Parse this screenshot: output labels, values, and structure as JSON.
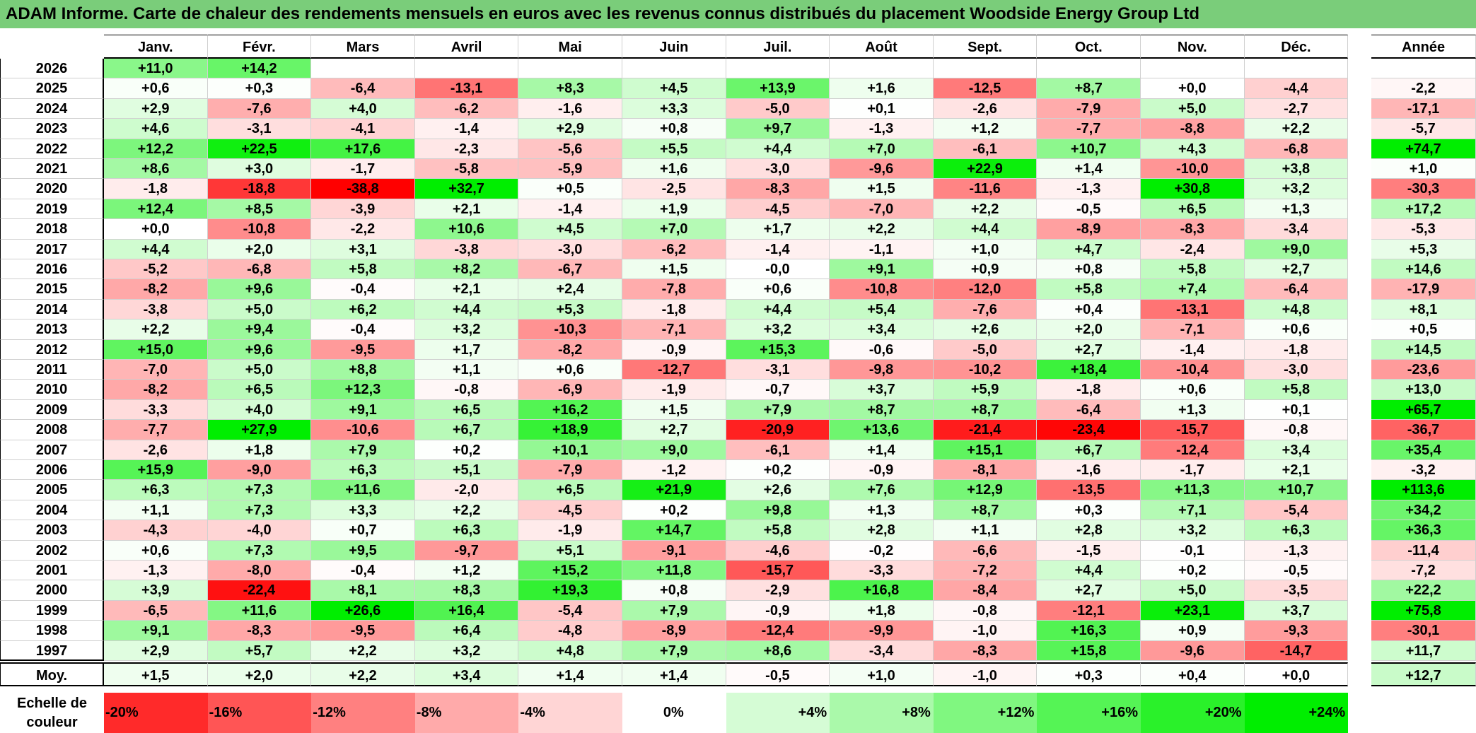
{
  "title": "ADAM Informe. Carte de chaleur des rendements mensuels en euros avec les revenus connus distribués du placement Woodside Energy Group Ltd",
  "chart_data": {
    "type": "heatmap",
    "title": "ADAM Informe. Carte de chaleur des rendements mensuels en euros avec les revenus connus distribués du placement Woodside Energy Group Ltd",
    "columns": [
      "Janv.",
      "Févr.",
      "Mars",
      "Avril",
      "Mai",
      "Juin",
      "Juil.",
      "Août",
      "Sept.",
      "Oct.",
      "Nov.",
      "Déc."
    ],
    "annual_label": "Année",
    "average_label": "Moy.",
    "rows": [
      {
        "year": "2026",
        "values": [
          "+11,0",
          "+14,2",
          "",
          "",
          "",
          "",
          "",
          "",
          "",
          "",
          "",
          ""
        ],
        "annual": ""
      },
      {
        "year": "2025",
        "values": [
          "+0,6",
          "+0,3",
          "-6,4",
          "-13,1",
          "+8,3",
          "+4,5",
          "+13,9",
          "+1,6",
          "-12,5",
          "+8,7",
          "+0,0",
          "-4,4"
        ],
        "annual": "-2,2"
      },
      {
        "year": "2024",
        "values": [
          "+2,9",
          "-7,6",
          "+4,0",
          "-6,2",
          "-1,6",
          "+3,3",
          "-5,0",
          "+0,1",
          "-2,6",
          "-7,9",
          "+5,0",
          "-2,7"
        ],
        "annual": "-17,1"
      },
      {
        "year": "2023",
        "values": [
          "+4,6",
          "-3,1",
          "-4,1",
          "-1,4",
          "+2,9",
          "+0,8",
          "+9,7",
          "-1,3",
          "+1,2",
          "-7,7",
          "-8,8",
          "+2,2"
        ],
        "annual": "-5,7"
      },
      {
        "year": "2022",
        "values": [
          "+12,2",
          "+22,5",
          "+17,6",
          "-2,3",
          "-5,6",
          "+5,5",
          "+4,4",
          "+7,0",
          "-6,1",
          "+10,7",
          "+4,3",
          "-6,8"
        ],
        "annual": "+74,7"
      },
      {
        "year": "2021",
        "values": [
          "+8,6",
          "+3,0",
          "-1,7",
          "-5,8",
          "-5,9",
          "+1,6",
          "-3,0",
          "-9,6",
          "+22,9",
          "+1,4",
          "-10,0",
          "+3,8"
        ],
        "annual": "+1,0"
      },
      {
        "year": "2020",
        "values": [
          "-1,8",
          "-18,8",
          "-38,8",
          "+32,7",
          "+0,5",
          "-2,5",
          "-8,3",
          "+1,5",
          "-11,6",
          "-1,3",
          "+30,8",
          "+3,2"
        ],
        "annual": "-30,3"
      },
      {
        "year": "2019",
        "values": [
          "+12,4",
          "+8,5",
          "-3,9",
          "+2,1",
          "-1,4",
          "+1,9",
          "-4,5",
          "-7,0",
          "+2,2",
          "-0,5",
          "+6,5",
          "+1,3"
        ],
        "annual": "+17,2"
      },
      {
        "year": "2018",
        "values": [
          "+0,0",
          "-10,8",
          "-2,2",
          "+10,6",
          "+4,5",
          "+7,0",
          "+1,7",
          "+2,2",
          "+4,4",
          "-8,9",
          "-8,3",
          "-3,4"
        ],
        "annual": "-5,3"
      },
      {
        "year": "2017",
        "values": [
          "+4,4",
          "+2,0",
          "+3,1",
          "-3,8",
          "-3,0",
          "-6,2",
          "-1,4",
          "-1,1",
          "+1,0",
          "+4,7",
          "-2,4",
          "+9,0"
        ],
        "annual": "+5,3"
      },
      {
        "year": "2016",
        "values": [
          "-5,2",
          "-6,8",
          "+5,8",
          "+8,2",
          "-6,7",
          "+1,5",
          "-0,0",
          "+9,1",
          "+0,9",
          "+0,8",
          "+5,8",
          "+2,7"
        ],
        "annual": "+14,6"
      },
      {
        "year": "2015",
        "values": [
          "-8,2",
          "+9,6",
          "-0,4",
          "+2,1",
          "+2,4",
          "-7,8",
          "+0,6",
          "-10,8",
          "-12,0",
          "+5,8",
          "+7,4",
          "-6,4"
        ],
        "annual": "-17,9"
      },
      {
        "year": "2014",
        "values": [
          "-3,8",
          "+5,0",
          "+6,2",
          "+4,4",
          "+5,3",
          "-1,8",
          "+4,4",
          "+5,4",
          "-7,6",
          "+0,4",
          "-13,1",
          "+4,8"
        ],
        "annual": "+8,1"
      },
      {
        "year": "2013",
        "values": [
          "+2,2",
          "+9,4",
          "-0,4",
          "+3,2",
          "-10,3",
          "-7,1",
          "+3,2",
          "+3,4",
          "+2,6",
          "+2,0",
          "-7,1",
          "+0,6"
        ],
        "annual": "+0,5"
      },
      {
        "year": "2012",
        "values": [
          "+15,0",
          "+9,6",
          "-9,5",
          "+1,7",
          "-8,2",
          "-0,9",
          "+15,3",
          "-0,6",
          "-5,0",
          "+2,7",
          "-1,4",
          "-1,8"
        ],
        "annual": "+14,5"
      },
      {
        "year": "2011",
        "values": [
          "-7,0",
          "+5,0",
          "+8,8",
          "+1,1",
          "+0,6",
          "-12,7",
          "-3,1",
          "-9,8",
          "-10,2",
          "+18,4",
          "-10,4",
          "-3,0"
        ],
        "annual": "-23,6"
      },
      {
        "year": "2010",
        "values": [
          "-8,2",
          "+6,5",
          "+12,3",
          "-0,8",
          "-6,9",
          "-1,9",
          "-0,7",
          "+3,7",
          "+5,9",
          "-1,8",
          "+0,6",
          "+5,8"
        ],
        "annual": "+13,0"
      },
      {
        "year": "2009",
        "values": [
          "-3,3",
          "+4,0",
          "+9,1",
          "+6,5",
          "+16,2",
          "+1,5",
          "+7,9",
          "+8,7",
          "+8,7",
          "-6,4",
          "+1,3",
          "+0,1"
        ],
        "annual": "+65,7"
      },
      {
        "year": "2008",
        "values": [
          "-7,7",
          "+27,9",
          "-10,6",
          "+6,7",
          "+18,9",
          "+2,7",
          "-20,9",
          "+13,6",
          "-21,4",
          "-23,4",
          "-15,7",
          "-0,8"
        ],
        "annual": "-36,7"
      },
      {
        "year": "2007",
        "values": [
          "-2,6",
          "+1,8",
          "+7,9",
          "+0,2",
          "+10,1",
          "+9,0",
          "-6,1",
          "+1,4",
          "+15,1",
          "+6,7",
          "-12,4",
          "+3,4"
        ],
        "annual": "+35,4"
      },
      {
        "year": "2006",
        "values": [
          "+15,9",
          "-9,0",
          "+6,3",
          "+5,1",
          "-7,9",
          "-1,2",
          "+0,2",
          "-0,9",
          "-8,1",
          "-1,6",
          "-1,7",
          "+2,1"
        ],
        "annual": "-3,2"
      },
      {
        "year": "2005",
        "values": [
          "+6,3",
          "+7,3",
          "+11,6",
          "-2,0",
          "+6,5",
          "+21,9",
          "+2,6",
          "+7,6",
          "+12,9",
          "-13,5",
          "+11,3",
          "+10,7"
        ],
        "annual": "+113,6"
      },
      {
        "year": "2004",
        "values": [
          "+1,1",
          "+7,3",
          "+3,3",
          "+2,2",
          "-4,5",
          "+0,2",
          "+9,8",
          "+1,3",
          "+8,7",
          "+0,3",
          "+7,1",
          "-5,4"
        ],
        "annual": "+34,2"
      },
      {
        "year": "2003",
        "values": [
          "-4,3",
          "-4,0",
          "+0,7",
          "+6,3",
          "-1,9",
          "+14,7",
          "+5,8",
          "+2,8",
          "+1,1",
          "+2,8",
          "+3,2",
          "+6,3"
        ],
        "annual": "+36,3"
      },
      {
        "year": "2002",
        "values": [
          "+0,6",
          "+7,3",
          "+9,5",
          "-9,7",
          "+5,1",
          "-9,1",
          "-4,6",
          "-0,2",
          "-6,6",
          "-1,5",
          "-0,1",
          "-1,3"
        ],
        "annual": "-11,4"
      },
      {
        "year": "2001",
        "values": [
          "-1,3",
          "-8,0",
          "-0,4",
          "+1,2",
          "+15,2",
          "+11,8",
          "-15,7",
          "-3,3",
          "-7,2",
          "+4,4",
          "+0,2",
          "-0,5"
        ],
        "annual": "-7,2"
      },
      {
        "year": "2000",
        "values": [
          "+3,9",
          "-22,4",
          "+8,1",
          "+8,3",
          "+19,3",
          "+0,8",
          "-2,9",
          "+16,8",
          "-8,4",
          "+2,7",
          "+5,0",
          "-3,5"
        ],
        "annual": "+22,2"
      },
      {
        "year": "1999",
        "values": [
          "-6,5",
          "+11,6",
          "+26,6",
          "+16,4",
          "-5,4",
          "+7,9",
          "-0,9",
          "+1,8",
          "-0,8",
          "-12,1",
          "+23,1",
          "+3,7"
        ],
        "annual": "+75,8"
      },
      {
        "year": "1998",
        "values": [
          "+9,1",
          "-8,3",
          "-9,5",
          "+6,4",
          "-4,8",
          "-8,9",
          "-12,4",
          "-9,9",
          "-1,0",
          "+16,3",
          "+0,9",
          "-9,3"
        ],
        "annual": "-30,1"
      },
      {
        "year": "1997",
        "values": [
          "+2,9",
          "+5,7",
          "+2,2",
          "+3,2",
          "+4,8",
          "+7,9",
          "+8,6",
          "-3,4",
          "-8,3",
          "+15,8",
          "-9,6",
          "-14,7"
        ],
        "annual": "+11,7"
      }
    ],
    "averages": [
      "+1,5",
      "+2,0",
      "+2,2",
      "+3,4",
      "+1,4",
      "+1,4",
      "-0,5",
      "+1,0",
      "-1,0",
      "+0,3",
      "+0,4",
      "+0,0"
    ],
    "average_annual": "+12,7",
    "legend_label": "Echelle de couleur",
    "legend": [
      "-20%",
      "-16%",
      "-12%",
      "-8%",
      "-4%",
      "0%",
      "+4%",
      "+8%",
      "+12%",
      "+16%",
      "+20%",
      "+24%"
    ],
    "colors": {
      "strong_negative": "#ff0000",
      "neutral": "#ffffff",
      "strong_positive": "#00ee00",
      "title_bar": "#7acd7a"
    }
  }
}
